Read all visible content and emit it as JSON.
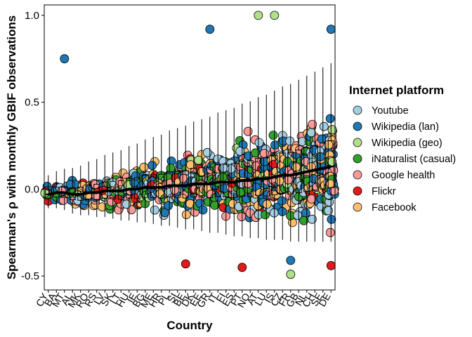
{
  "chart_data": {
    "type": "scatter",
    "subtype": "box-and-jitter by category",
    "xlabel": "Country",
    "ylabel": "Spearman's ρ with monthly GBIF observations",
    "ylim": [
      -0.58,
      1.06
    ],
    "yticks": [
      "1.0",
      "0.5",
      "0.0",
      "-0.5"
    ],
    "ytick_values": [
      1.0,
      0.5,
      0.0,
      -0.5
    ],
    "categories": [
      "CY",
      "BA",
      "MT",
      "AL",
      "MK",
      "RO",
      "RS",
      "LV",
      "SK",
      "LT",
      "HU",
      "IE",
      "BG",
      "ME",
      "HR",
      "PL",
      "SI",
      "BE",
      "DK",
      "EE",
      "GR",
      "IT",
      "FI",
      "ES",
      "PT",
      "NO",
      "AT",
      "LU",
      "IS",
      "CZ",
      "FR",
      "GB",
      "NL",
      "CH",
      "SE",
      "DE"
    ],
    "medians": [
      -0.03,
      -0.02,
      -0.02,
      -0.03,
      -0.03,
      -0.02,
      -0.02,
      -0.01,
      -0.01,
      -0.01,
      0.0,
      0.0,
      0.01,
      0.01,
      0.01,
      0.02,
      0.02,
      0.02,
      0.03,
      0.03,
      0.03,
      0.04,
      0.04,
      0.04,
      0.05,
      0.05,
      0.06,
      0.06,
      0.07,
      0.08,
      0.08,
      0.09,
      0.1,
      0.11,
      0.12,
      0.13
    ],
    "grid": false,
    "legend_title": "Internet platform",
    "legend_position": "right",
    "series": [
      {
        "name": "Youtube",
        "color": "#a6cee3"
      },
      {
        "name": "Wikipedia (lan)",
        "color": "#1f78b4"
      },
      {
        "name": "Wikipedia (geo)",
        "color": "#b2df8a"
      },
      {
        "name": "iNaturalist (casual)",
        "color": "#33a02c"
      },
      {
        "name": "Google health",
        "color": "#fb9a99"
      },
      {
        "name": "Flickr",
        "color": "#e31a1c"
      },
      {
        "name": "Facebook",
        "color": "#fdbf6f"
      }
    ],
    "highlighted_points": [
      {
        "category": "AT",
        "series": "Wikipedia (geo)",
        "y": 1.0
      },
      {
        "category": "IS",
        "series": "Wikipedia (geo)",
        "y": 1.0
      },
      {
        "category": "FR",
        "series": "Wikipedia (geo)",
        "y": -0.49
      },
      {
        "category": "BE",
        "series": "Flickr",
        "y": -0.43
      },
      {
        "category": "PT",
        "series": "Flickr",
        "y": -0.45
      },
      {
        "category": "DE",
        "series": "Flickr",
        "y": -0.44
      },
      {
        "category": "MT",
        "series": "Wikipedia (lan)",
        "y": 0.75
      },
      {
        "category": "GR",
        "series": "Wikipedia (lan)",
        "y": 0.92
      },
      {
        "category": "DE",
        "series": "Wikipedia (lan)",
        "y": 0.92
      },
      {
        "category": "FR",
        "series": "Wikipedia (lan)",
        "y": -0.41
      }
    ]
  }
}
